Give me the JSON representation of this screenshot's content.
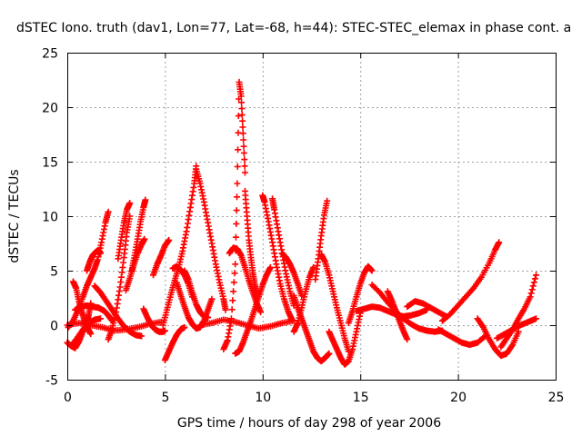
{
  "chart_data": {
    "type": "scatter",
    "title": "dSTEC Iono. truth (dav1, Lon=77, Lat=-68, h=44): STEC-STEC_elemax in phase cont. a",
    "xlabel": "GPS time / hours of day 298 of year 2006",
    "ylabel": "dSTEC  / TECUs",
    "xlim": [
      0,
      25
    ],
    "ylim": [
      -5,
      25
    ],
    "xticks": [
      0,
      5,
      10,
      15,
      20,
      25
    ],
    "yticks": [
      -5,
      0,
      5,
      10,
      15,
      20,
      25
    ],
    "grid": true,
    "marker": "plus",
    "color": "#ff0000",
    "series": [
      {
        "x": [
          0.0,
          0.2,
          0.4,
          0.6,
          0.8,
          1.0,
          1.1,
          1.2
        ],
        "y": [
          -1.6,
          -1.9,
          -2.1,
          -1.5,
          -0.6,
          0.2,
          1.0,
          2.0
        ]
      },
      {
        "x": [
          0.3,
          0.45,
          0.6,
          0.75,
          0.9,
          1.05,
          1.2
        ],
        "y": [
          4.0,
          3.4,
          2.2,
          1.2,
          0.3,
          -0.3,
          -0.8
        ]
      },
      {
        "x": [
          0.05,
          0.3,
          0.55,
          0.8,
          1.0,
          1.2,
          1.4,
          1.55,
          1.75,
          1.95,
          2.1
        ],
        "y": [
          -0.2,
          0.4,
          1.4,
          2.6,
          3.6,
          4.4,
          5.2,
          6.0,
          7.6,
          9.4,
          10.4
        ]
      },
      {
        "x": [
          1.0,
          1.15,
          1.3,
          1.45,
          1.6,
          1.7
        ],
        "y": [
          5.0,
          5.8,
          6.4,
          6.7,
          6.9,
          6.6
        ]
      },
      {
        "x": [
          0.4,
          0.7,
          1.0,
          1.3,
          1.6,
          1.9,
          2.1,
          2.3
        ],
        "y": [
          1.4,
          1.7,
          1.8,
          1.7,
          1.6,
          1.3,
          0.9,
          0.4
        ]
      },
      {
        "x": [
          2.1,
          2.3,
          2.5,
          2.7,
          2.9,
          3.05,
          3.2
        ],
        "y": [
          -1.3,
          -0.3,
          1.2,
          3.5,
          6.2,
          8.5,
          10.0
        ]
      },
      {
        "x": [
          2.6,
          2.75,
          2.9,
          3.05,
          3.2
        ],
        "y": [
          6.1,
          7.8,
          9.4,
          10.6,
          11.2
        ]
      },
      {
        "x": [
          1.4,
          1.7,
          2.0,
          2.3,
          2.6,
          2.9,
          3.2,
          3.5,
          3.8
        ],
        "y": [
          3.6,
          3.0,
          2.2,
          1.4,
          0.6,
          -0.1,
          -0.6,
          -0.9,
          -1.0
        ]
      },
      {
        "x": [
          3.0,
          3.2,
          3.4,
          3.6,
          3.8,
          3.95
        ],
        "y": [
          3.2,
          4.3,
          5.5,
          6.6,
          7.4,
          7.9
        ]
      },
      {
        "x": [
          3.3,
          3.45,
          3.6,
          3.75,
          3.9,
          4.0
        ],
        "y": [
          5.0,
          6.4,
          7.9,
          9.5,
          10.8,
          11.5
        ]
      },
      {
        "x": [
          3.9,
          4.1,
          4.3,
          4.5,
          4.7,
          4.9,
          5.0
        ],
        "y": [
          1.5,
          0.7,
          0.0,
          -0.4,
          -0.6,
          -0.6,
          -0.5
        ]
      },
      {
        "x": [
          4.4,
          4.6,
          4.8,
          5.0,
          5.2
        ],
        "y": [
          4.6,
          5.6,
          6.4,
          7.3,
          7.8
        ]
      },
      {
        "x": [
          4.9,
          5.1,
          5.3,
          5.5,
          5.7,
          5.9,
          6.1,
          6.3,
          6.5,
          6.6
        ],
        "y": [
          0.0,
          1.4,
          2.8,
          4.1,
          5.3,
          6.8,
          8.6,
          10.8,
          13.0,
          14.6
        ]
      },
      {
        "x": [
          6.6,
          6.8,
          7.0,
          7.2,
          7.4,
          7.6,
          7.8,
          8.0,
          8.1
        ],
        "y": [
          14.3,
          13.0,
          11.3,
          9.4,
          7.5,
          5.6,
          3.9,
          2.4,
          1.4
        ]
      },
      {
        "x": [
          5.0,
          5.2,
          5.4,
          5.6,
          5.8,
          6.0
        ],
        "y": [
          -3.2,
          -2.4,
          -1.6,
          -0.9,
          -0.4,
          -0.2
        ]
      },
      {
        "x": [
          5.6,
          5.8,
          6.0,
          6.2,
          6.4,
          6.6,
          6.8,
          7.0,
          7.2,
          7.4
        ],
        "y": [
          3.9,
          2.8,
          1.7,
          0.7,
          0.1,
          -0.3,
          -0.2,
          0.4,
          1.4,
          2.4
        ]
      },
      {
        "x": [
          6.0,
          6.2,
          6.4,
          6.6,
          6.8,
          7.0,
          7.2
        ],
        "y": [
          5.0,
          4.2,
          3.0,
          1.9,
          1.2,
          0.8,
          0.7
        ]
      },
      {
        "x": [
          5.4,
          5.6,
          5.8,
          6.0,
          6.2,
          6.4
        ],
        "y": [
          5.2,
          5.4,
          5.1,
          4.6,
          3.8,
          2.6
        ]
      },
      {
        "x": [
          8.0,
          8.2,
          8.4,
          8.6,
          8.7,
          8.8,
          8.9,
          9.0,
          9.1
        ],
        "y": [
          -2.2,
          -1.4,
          0.6,
          5.6,
          13.0,
          22.3,
          21.0,
          17.6,
          14.0
        ]
      },
      {
        "x": [
          9.1,
          9.2,
          9.3,
          9.4,
          9.5,
          9.6,
          9.7
        ],
        "y": [
          12.3,
          10.0,
          7.8,
          6.2,
          4.8,
          3.7,
          2.8
        ]
      },
      {
        "x": [
          8.6,
          8.8,
          9.0,
          9.2,
          9.4,
          9.6,
          9.8,
          10.0,
          10.2,
          10.4
        ],
        "y": [
          -2.6,
          -2.4,
          -1.6,
          -0.6,
          0.4,
          1.5,
          2.6,
          3.7,
          4.6,
          5.3
        ]
      },
      {
        "x": [
          8.3,
          8.5,
          8.7,
          8.9,
          9.1,
          9.3,
          9.5,
          9.7,
          9.9
        ],
        "y": [
          6.6,
          7.1,
          7.0,
          6.4,
          5.3,
          4.1,
          3.0,
          2.0,
          1.2
        ]
      },
      {
        "x": [
          10.0,
          10.1,
          10.3,
          10.5,
          10.7,
          10.9,
          11.1,
          11.3,
          11.5
        ],
        "y": [
          11.9,
          11.3,
          9.5,
          7.6,
          5.6,
          3.8,
          2.4,
          1.3,
          0.5
        ]
      },
      {
        "x": [
          10.5,
          10.6,
          10.8,
          11.0,
          11.2,
          11.4,
          11.6
        ],
        "y": [
          11.6,
          10.6,
          8.6,
          6.6,
          4.7,
          3.1,
          1.8
        ]
      },
      {
        "x": [
          11.6,
          11.8,
          12.0,
          12.2,
          12.4,
          12.6
        ],
        "y": [
          -0.6,
          0.2,
          1.6,
          3.1,
          4.4,
          5.3
        ]
      },
      {
        "x": [
          11.0,
          11.2,
          11.4,
          11.6,
          11.8,
          12.0
        ],
        "y": [
          6.6,
          6.2,
          5.6,
          4.8,
          3.8,
          2.7
        ]
      },
      {
        "x": [
          11.6,
          11.8,
          12.0,
          12.2,
          12.4,
          12.6,
          12.8,
          13.0,
          13.2,
          13.4
        ],
        "y": [
          2.7,
          1.6,
          0.6,
          -0.4,
          -1.4,
          -2.4,
          -3.0,
          -3.3,
          -3.0,
          -2.6
        ]
      },
      {
        "x": [
          12.7,
          12.85,
          13.0,
          13.15,
          13.3
        ],
        "y": [
          4.2,
          6.1,
          8.2,
          10.1,
          11.4
        ]
      },
      {
        "x": [
          13.0,
          13.2,
          13.4,
          13.6,
          13.8,
          14.0,
          14.2,
          14.4
        ],
        "y": [
          6.5,
          5.8,
          4.6,
          3.1,
          1.6,
          0.2,
          -1.2,
          -2.4
        ]
      },
      {
        "x": [
          13.4,
          13.6,
          13.8,
          14.0,
          14.2,
          14.4,
          14.6,
          14.8,
          15.0
        ],
        "y": [
          -0.6,
          -1.4,
          -2.2,
          -3.0,
          -3.6,
          -3.3,
          -2.2,
          -0.6,
          1.1
        ]
      },
      {
        "x": [
          14.4,
          14.6,
          14.8,
          15.0,
          15.2,
          15.4,
          15.6
        ],
        "y": [
          0.2,
          1.3,
          2.6,
          3.8,
          4.8,
          5.4,
          5.0
        ]
      },
      {
        "x": [
          14.8,
          15.2,
          15.6,
          16.0,
          16.4,
          16.8,
          17.2,
          17.6,
          18.0,
          18.4
        ],
        "y": [
          1.3,
          1.5,
          1.7,
          1.6,
          1.3,
          1.0,
          0.8,
          0.9,
          1.1,
          1.4
        ]
      },
      {
        "x": [
          15.6,
          16.0,
          16.4,
          16.8,
          17.2,
          17.6,
          18.0,
          18.4,
          18.8,
          19.2
        ],
        "y": [
          3.7,
          3.0,
          2.1,
          1.3,
          0.6,
          0.1,
          -0.3,
          -0.5,
          -0.6,
          -0.5
        ]
      },
      {
        "x": [
          16.4,
          16.6,
          16.8,
          17.0,
          17.2,
          17.4
        ],
        "y": [
          3.1,
          2.3,
          1.4,
          0.4,
          -0.5,
          -1.3
        ]
      },
      {
        "x": [
          17.4,
          17.8,
          18.2,
          18.6,
          19.0,
          19.4
        ],
        "y": [
          1.7,
          2.2,
          2.0,
          1.6,
          1.2,
          0.8
        ]
      },
      {
        "x": [
          19.2,
          19.6,
          20.0,
          20.4,
          20.8,
          21.2,
          21.6,
          21.9,
          22.1
        ],
        "y": [
          0.4,
          1.0,
          1.8,
          2.6,
          3.4,
          4.4,
          5.7,
          6.9,
          7.6
        ]
      },
      {
        "x": [
          19.0,
          19.4,
          19.8,
          20.2,
          20.6,
          21.0,
          21.4
        ],
        "y": [
          -0.4,
          -0.8,
          -1.2,
          -1.6,
          -1.8,
          -1.6,
          -1.0
        ]
      },
      {
        "x": [
          21.0,
          21.3,
          21.6,
          21.9,
          22.2,
          22.5,
          22.8,
          23.1
        ],
        "y": [
          0.6,
          -0.2,
          -1.3,
          -2.2,
          -2.8,
          -2.6,
          -1.8,
          -0.6
        ]
      },
      {
        "x": [
          22.2,
          22.5,
          22.8,
          23.1,
          23.4,
          23.7,
          24.0
        ],
        "y": [
          -2.0,
          -1.2,
          -0.4,
          0.6,
          1.5,
          2.6,
          4.6
        ]
      },
      {
        "x": [
          22.0,
          22.4,
          22.8,
          23.2,
          23.6,
          24.0
        ],
        "y": [
          -1.2,
          -0.8,
          -0.4,
          0.0,
          0.3,
          0.6
        ]
      },
      {
        "x": [
          0.0,
          0.6,
          1.2,
          1.8,
          2.4,
          3.0,
          3.6,
          4.2,
          4.8
        ],
        "y": [
          0.0,
          0.2,
          0.0,
          -0.2,
          -0.5,
          -0.4,
          -0.2,
          0.1,
          0.3
        ]
      },
      {
        "x": [
          6.8,
          7.4,
          8.0,
          8.6,
          9.2,
          9.8,
          10.4,
          11.0,
          11.6
        ],
        "y": [
          0.0,
          0.2,
          0.5,
          0.3,
          0.0,
          -0.3,
          -0.1,
          0.2,
          0.4
        ]
      },
      {
        "x": [
          0.2,
          0.5,
          0.8,
          1.1,
          1.4,
          1.7
        ],
        "y": [
          -1.9,
          -1.2,
          -0.4,
          0.2,
          0.5,
          0.6
        ]
      }
    ]
  }
}
